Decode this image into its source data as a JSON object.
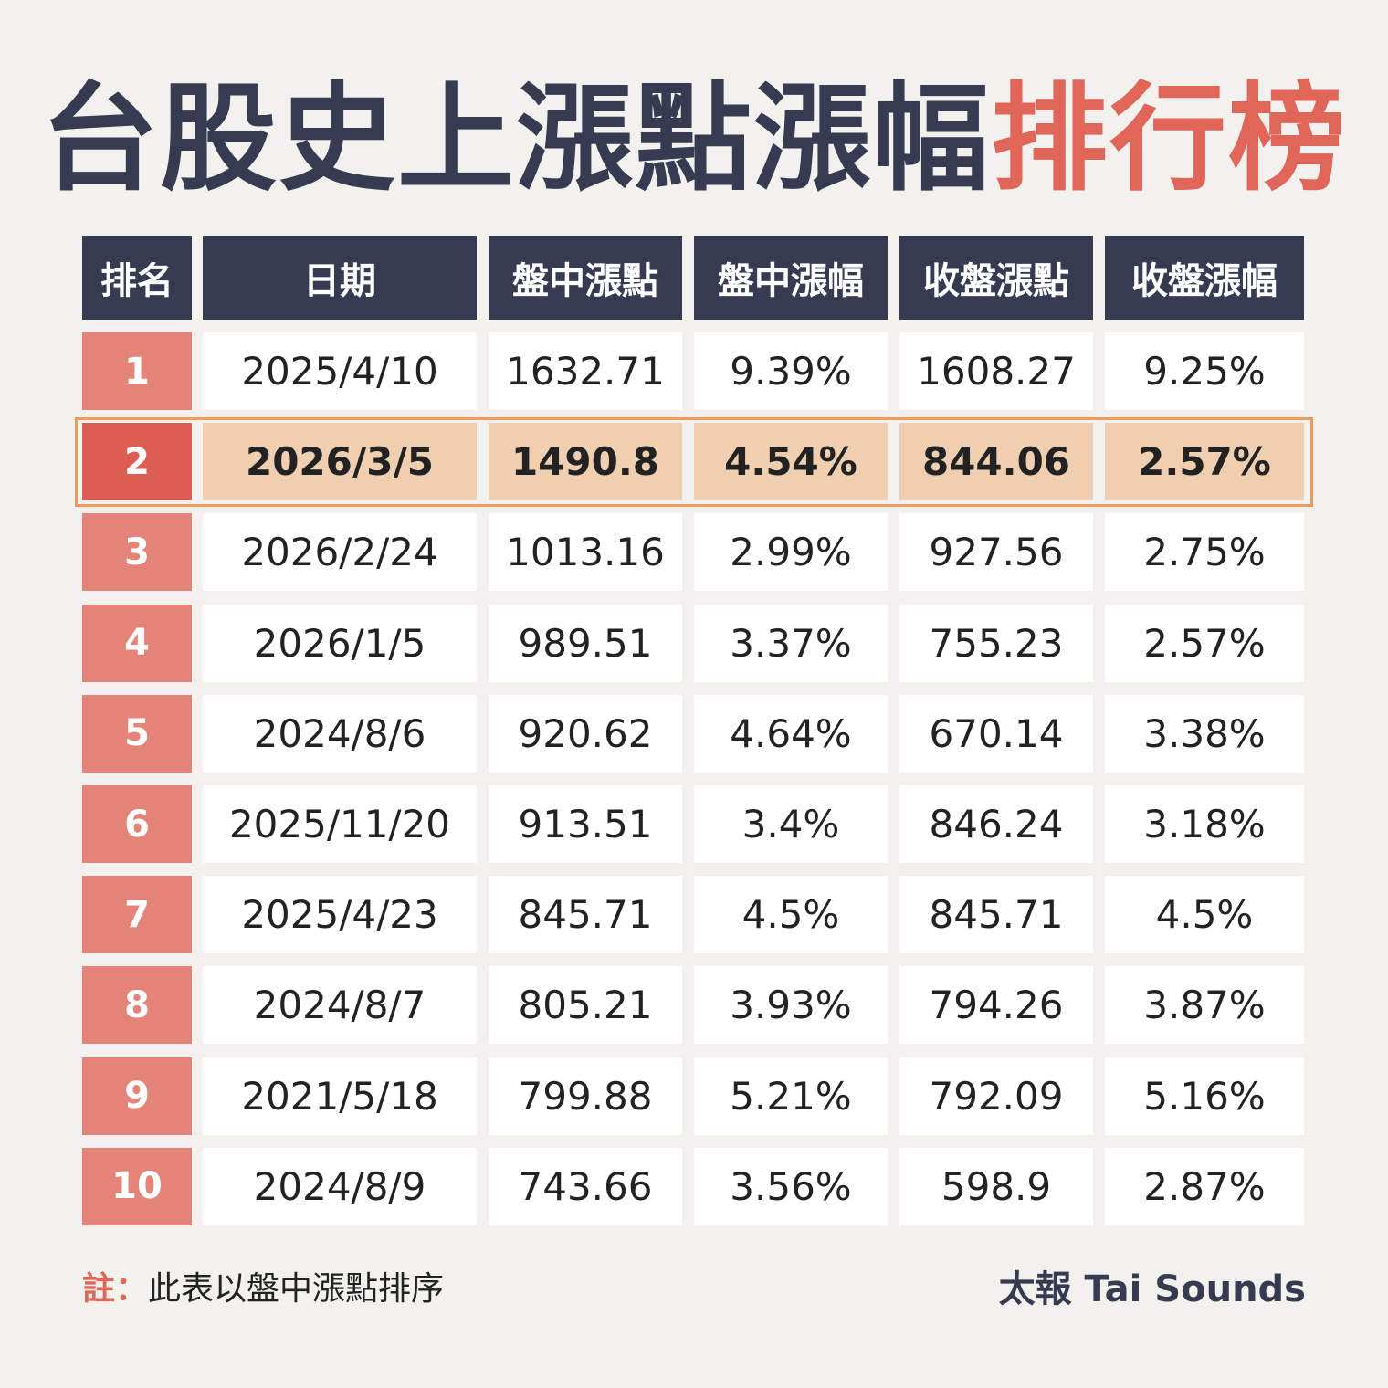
{
  "title": {
    "main": "台股史上漲點漲幅",
    "accent": "排行榜"
  },
  "chart_data": {
    "type": "table",
    "columns": [
      "排名",
      "日期",
      "盤中漲點",
      "盤中漲幅",
      "收盤漲點",
      "收盤漲幅"
    ],
    "rows": [
      [
        "1",
        "2025/4/10",
        "1632.71",
        "9.39%",
        "1608.27",
        "9.25%"
      ],
      [
        "2",
        "2026/3/5",
        "1490.8",
        "4.54%",
        "844.06",
        "2.57%"
      ],
      [
        "3",
        "2026/2/24",
        "1013.16",
        "2.99%",
        "927.56",
        "2.75%"
      ],
      [
        "4",
        "2026/1/5",
        "989.51",
        "3.37%",
        "755.23",
        "2.57%"
      ],
      [
        "5",
        "2024/8/6",
        "920.62",
        "4.64%",
        "670.14",
        "3.38%"
      ],
      [
        "6",
        "2025/11/20",
        "913.51",
        "3.4%",
        "846.24",
        "3.18%"
      ],
      [
        "7",
        "2025/4/23",
        "845.71",
        "4.5%",
        "845.71",
        "4.5%"
      ],
      [
        "8",
        "2024/8/7",
        "805.21",
        "3.93%",
        "794.26",
        "3.87%"
      ],
      [
        "9",
        "2021/5/18",
        "799.88",
        "5.21%",
        "792.09",
        "5.16%"
      ],
      [
        "10",
        "2024/8/9",
        "743.66",
        "3.56%",
        "598.9",
        "2.87%"
      ]
    ],
    "highlighted_rank": "2"
  },
  "footer": {
    "note_label": "註：",
    "note_text": "此表以盤中漲點排序",
    "brand": "太報 Tai Sounds"
  },
  "colors": {
    "header_bg": "#363b52",
    "rank_bg": "#e48478",
    "rank_highlight_bg": "#dc5d52",
    "highlight_row_bg": "#f0cfb0",
    "highlight_border": "#ef9b5e",
    "accent_text": "#e0665a",
    "background": "#f2f1ee"
  }
}
